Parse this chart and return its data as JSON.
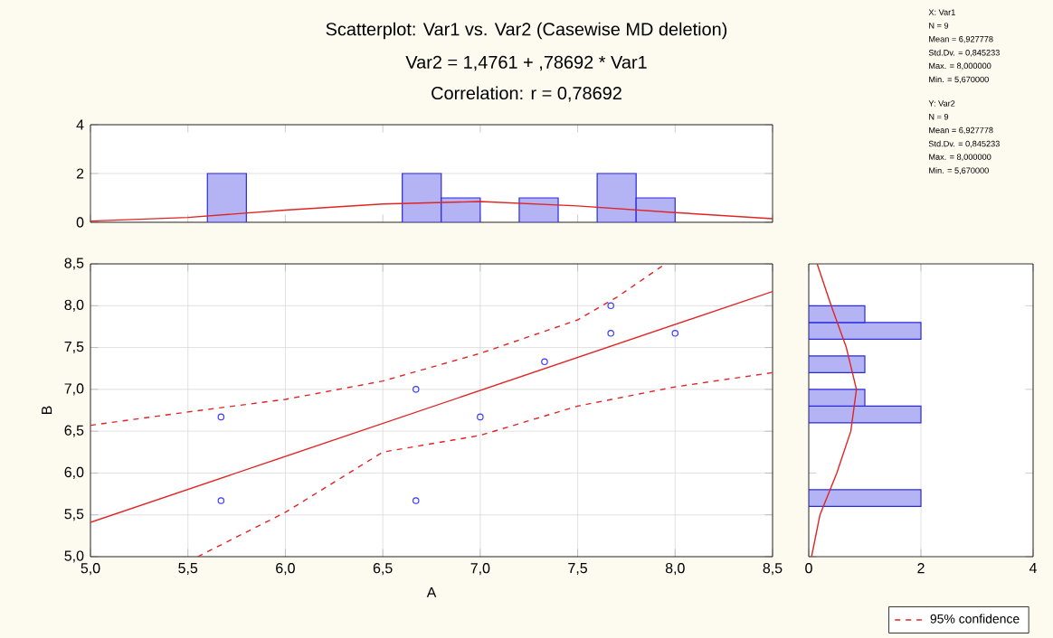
{
  "chart_data": [
    {
      "type": "histogram",
      "title": "Scatterplot: Var1     vs. Var2     (Casewise MD deletion)",
      "subtitle": "Var2     = 1,4761 + ,78692 * Var1",
      "annotations": [
        "Correlation: r = 0,78692"
      ],
      "bins": [
        5.0,
        5.2,
        5.4,
        5.6,
        5.8,
        6.0,
        6.2,
        6.4,
        6.6,
        6.8,
        7.0,
        7.2,
        7.4,
        7.6,
        7.8,
        8.0,
        8.2,
        8.4
      ],
      "values": [
        0,
        0,
        0,
        2,
        0,
        0,
        0,
        0,
        2,
        1,
        0,
        1,
        0,
        2,
        1,
        0,
        0
      ],
      "color": "#2a2ae0",
      "series": [
        {
          "type": "line",
          "color": "#e02424",
          "x": [
            5.0,
            5.5,
            6.0,
            6.5,
            7.0,
            7.5,
            8.0,
            8.5
          ],
          "values": [
            0.05,
            0.2,
            0.5,
            0.75,
            0.85,
            0.67,
            0.4,
            0.15
          ]
        }
      ],
      "xlim": [
        5.0,
        8.5
      ],
      "ylim": [
        0,
        4
      ],
      "yticks": [
        0,
        2,
        4
      ],
      "grid": "y",
      "tick_labels": "y"
    },
    {
      "type": "other",
      "annotations": [
        "X: Var1",
        "N = 9",
        "Mean = 6,927778",
        "Std.Dv. = 0,845233",
        "Max. = 8,000000",
        "Min. = 5,670000",
        "Y: Var2",
        "N = 9",
        "Mean = 6,927778",
        "Std.Dv. = 0,845233",
        "Max. = 8,000000",
        "Min. = 5,670000"
      ]
    },
    {
      "type": "scatter",
      "xlabel": "A",
      "ylabel": "B",
      "legend": "bottom right",
      "grid": true,
      "series": [
        {
          "type": "scatter",
          "marker": "circle",
          "color": "#3a3aff",
          "x": [
            5.67,
            5.67,
            6.67,
            6.67,
            7.0,
            7.33,
            7.67,
            7.67,
            8.0
          ],
          "values": [
            6.67,
            5.67,
            7.0,
            5.67,
            6.67,
            7.33,
            8.0,
            7.67,
            7.67
          ]
        },
        {
          "type": "line",
          "color": "#e02424",
          "line_style": "solid",
          "x": [
            5.0,
            8.5
          ],
          "values": [
            5.41,
            8.17
          ]
        },
        {
          "type": "line",
          "name": "95% confidence",
          "color": "#e02424",
          "line_style": "dashed",
          "x": [
            5.0,
            5.5,
            6.0,
            6.5,
            7.0,
            7.5,
            7.7,
            7.95
          ],
          "values": [
            6.57,
            6.73,
            6.88,
            7.1,
            7.43,
            7.83,
            8.1,
            8.5
          ]
        },
        {
          "type": "line",
          "color": "#e02424",
          "line_style": "dashed",
          "x": [
            5.55,
            6.0,
            6.5,
            7.0,
            7.5,
            8.0,
            8.5
          ],
          "values": [
            5.0,
            5.53,
            6.25,
            6.45,
            6.8,
            7.03,
            7.2
          ]
        }
      ],
      "xlim": [
        5.0,
        8.5
      ],
      "ylim": [
        5.0,
        8.5
      ],
      "xticks": [
        {
          "value": 5.0,
          "label": "5,0"
        },
        {
          "value": 5.5,
          "label": "5,5"
        },
        {
          "value": 6.0,
          "label": "6,0"
        },
        {
          "value": 6.5,
          "label": "6,5"
        },
        {
          "value": 7.0,
          "label": "7,0"
        },
        {
          "value": 7.5,
          "label": "7,5"
        },
        {
          "value": 8.0,
          "label": "8,0"
        },
        {
          "value": 8.5,
          "label": "8,5"
        }
      ],
      "yticks": [
        {
          "value": 5.0,
          "label": "5,0"
        },
        {
          "value": 5.5,
          "label": "5,5"
        },
        {
          "value": 6.0,
          "label": "6,0"
        },
        {
          "value": 6.5,
          "label": "6,5"
        },
        {
          "value": 7.0,
          "label": "7,0"
        },
        {
          "value": 7.5,
          "label": "7,5"
        },
        {
          "value": 8.0,
          "label": "8,0"
        },
        {
          "value": 8.5,
          "label": "8,5"
        }
      ]
    },
    {
      "type": "histogram",
      "orientation": "horizontal",
      "bins": [
        5.0,
        5.2,
        5.4,
        5.6,
        5.8,
        6.0,
        6.2,
        6.4,
        6.6,
        6.8,
        7.0,
        7.2,
        7.4,
        7.6,
        7.8,
        8.0,
        8.2,
        8.4
      ],
      "values": [
        0,
        0,
        0,
        2,
        0,
        0,
        0,
        0,
        2,
        1,
        0,
        1,
        0,
        2,
        1,
        0,
        0
      ],
      "color": "#2a2ae0",
      "series": [
        {
          "type": "line",
          "color": "#e02424",
          "x": [
            5.0,
            5.5,
            6.0,
            6.5,
            7.0,
            7.5,
            8.0,
            8.5
          ],
          "values": [
            0.05,
            0.2,
            0.5,
            0.75,
            0.85,
            0.67,
            0.4,
            0.15
          ]
        }
      ],
      "xlim": [
        0,
        4
      ],
      "xticks": [
        0,
        2,
        4
      ],
      "ylim": [
        5.0,
        8.5
      ],
      "grid": "x",
      "tick_labels": "x"
    }
  ]
}
